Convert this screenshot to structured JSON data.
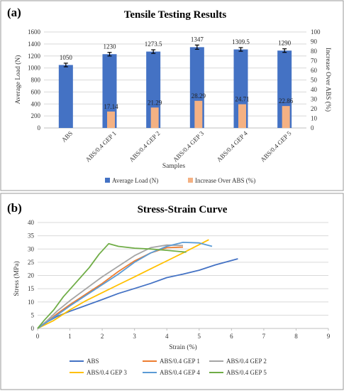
{
  "panels": {
    "a": {
      "label": "(a)"
    },
    "b": {
      "label": "(b)"
    }
  },
  "chart_data": [
    {
      "type": "bar",
      "title": "Tensile Testing Results",
      "xlabel": "Samples",
      "ylabel": "Average Load (N)",
      "y2label": "Increase Over ABS (%)",
      "categories": [
        "ABS",
        "ABS/0.4 GEP 1",
        "ABS/0.4 GEP 2",
        "ABS/0.4 GEP 3",
        "ABS/0.4 GEP 4",
        "ABS/0.4 GEP 5"
      ],
      "series": [
        {
          "name": "Average Load (N)",
          "axis": "left",
          "color": "#4472c4",
          "values": [
            1050,
            1230,
            1273.5,
            1347,
            1309.5,
            1290
          ],
          "value_labels": [
            "1050",
            "1230",
            "1273.5",
            "1347",
            "1309.5",
            "1290"
          ],
          "error": [
            30,
            30,
            30,
            35,
            30,
            30
          ]
        },
        {
          "name": "Increase Over ABS (%)",
          "axis": "right",
          "color": "#f4b183",
          "values": [
            0,
            17.14,
            21.29,
            28.29,
            24.71,
            22.86
          ],
          "value_labels": [
            "",
            "17.14",
            "21.29",
            "28.29",
            "24.71",
            "22.86"
          ]
        }
      ],
      "ylim": [
        0,
        1600
      ],
      "yticks": [
        0,
        200,
        400,
        600,
        800,
        1000,
        1200,
        1400,
        1600
      ],
      "y2lim": [
        0,
        100
      ],
      "y2ticks": [
        0,
        10,
        20,
        30,
        40,
        50,
        60,
        70,
        80,
        90,
        100
      ],
      "grid": true,
      "legend": "bottom"
    },
    {
      "type": "line",
      "title": "Stress-Strain Curve",
      "xlabel": "Strain (%)",
      "ylabel": "Stress (MPa)",
      "xlim": [
        0,
        9
      ],
      "xticks": [
        0,
        1,
        2,
        3,
        4,
        5,
        6,
        7,
        8,
        9
      ],
      "ylim": [
        0,
        40
      ],
      "yticks": [
        0,
        5,
        10,
        15,
        20,
        25,
        30,
        35,
        40
      ],
      "grid": true,
      "legend": "bottom",
      "series": [
        {
          "name": "ABS",
          "color": "#4472c4",
          "points": [
            [
              0,
              0
            ],
            [
              0.3,
              2.5
            ],
            [
              0.6,
              4.5
            ],
            [
              1,
              6.5
            ],
            [
              1.5,
              8.7
            ],
            [
              2,
              10.9
            ],
            [
              2.5,
              13.2
            ],
            [
              3,
              15.1
            ],
            [
              3.5,
              17
            ],
            [
              4,
              19.2
            ],
            [
              4.5,
              20.5
            ],
            [
              5,
              22
            ],
            [
              5.5,
              24
            ],
            [
              6.2,
              26.3
            ]
          ]
        },
        {
          "name": "ABS/0.4 GEP 1",
          "color": "#ed7d31",
          "points": [
            [
              0,
              0
            ],
            [
              0.3,
              2.5
            ],
            [
              0.6,
              5.5
            ],
            [
              1,
              9
            ],
            [
              1.5,
              13
            ],
            [
              2,
              17
            ],
            [
              2.5,
              21.5
            ],
            [
              3,
              25.5
            ],
            [
              3.5,
              28.5
            ],
            [
              4,
              30.5
            ],
            [
              4.5,
              30.7
            ]
          ]
        },
        {
          "name": "ABS/0.4 GEP 2",
          "color": "#a5a5a5",
          "points": [
            [
              0,
              0
            ],
            [
              0.3,
              3
            ],
            [
              0.6,
              6.5
            ],
            [
              1,
              10.5
            ],
            [
              1.5,
              15
            ],
            [
              2,
              19.5
            ],
            [
              2.5,
              23.5
            ],
            [
              3,
              27.5
            ],
            [
              3.5,
              30.5
            ],
            [
              4,
              31.5
            ],
            [
              4.5,
              31.3
            ]
          ]
        },
        {
          "name": "ABS/0.4 GEP 3",
          "color": "#ffc000",
          "points": [
            [
              0,
              0
            ],
            [
              0.5,
              3
            ],
            [
              1,
              7
            ],
            [
              1.5,
              10.5
            ],
            [
              2,
              13.5
            ],
            [
              2.5,
              16.5
            ],
            [
              3,
              19.5
            ],
            [
              3.5,
              22.5
            ],
            [
              4,
              25.5
            ],
            [
              4.5,
              28.5
            ],
            [
              5.3,
              33.5
            ]
          ]
        },
        {
          "name": "ABS/0.4 GEP 4",
          "color": "#5b9bd5",
          "points": [
            [
              0,
              0
            ],
            [
              0.3,
              2.5
            ],
            [
              0.6,
              5
            ],
            [
              1,
              8.5
            ],
            [
              1.5,
              12.5
            ],
            [
              2,
              16.5
            ],
            [
              2.5,
              20.5
            ],
            [
              3,
              25
            ],
            [
              3.5,
              28.5
            ],
            [
              4,
              31
            ],
            [
              4.5,
              32.5
            ],
            [
              5,
              32.3
            ],
            [
              5.4,
              31
            ]
          ]
        },
        {
          "name": "ABS/0.4 GEP 5",
          "color": "#70ad47",
          "points": [
            [
              0,
              0
            ],
            [
              0.2,
              3
            ],
            [
              0.5,
              7
            ],
            [
              0.8,
              12
            ],
            [
              1.2,
              17.5
            ],
            [
              1.6,
              23
            ],
            [
              1.9,
              28
            ],
            [
              2.2,
              32
            ],
            [
              2.5,
              31
            ],
            [
              3,
              30.3
            ],
            [
              3.5,
              30
            ],
            [
              4,
              29.5
            ],
            [
              4.6,
              28.8
            ]
          ]
        }
      ]
    }
  ]
}
